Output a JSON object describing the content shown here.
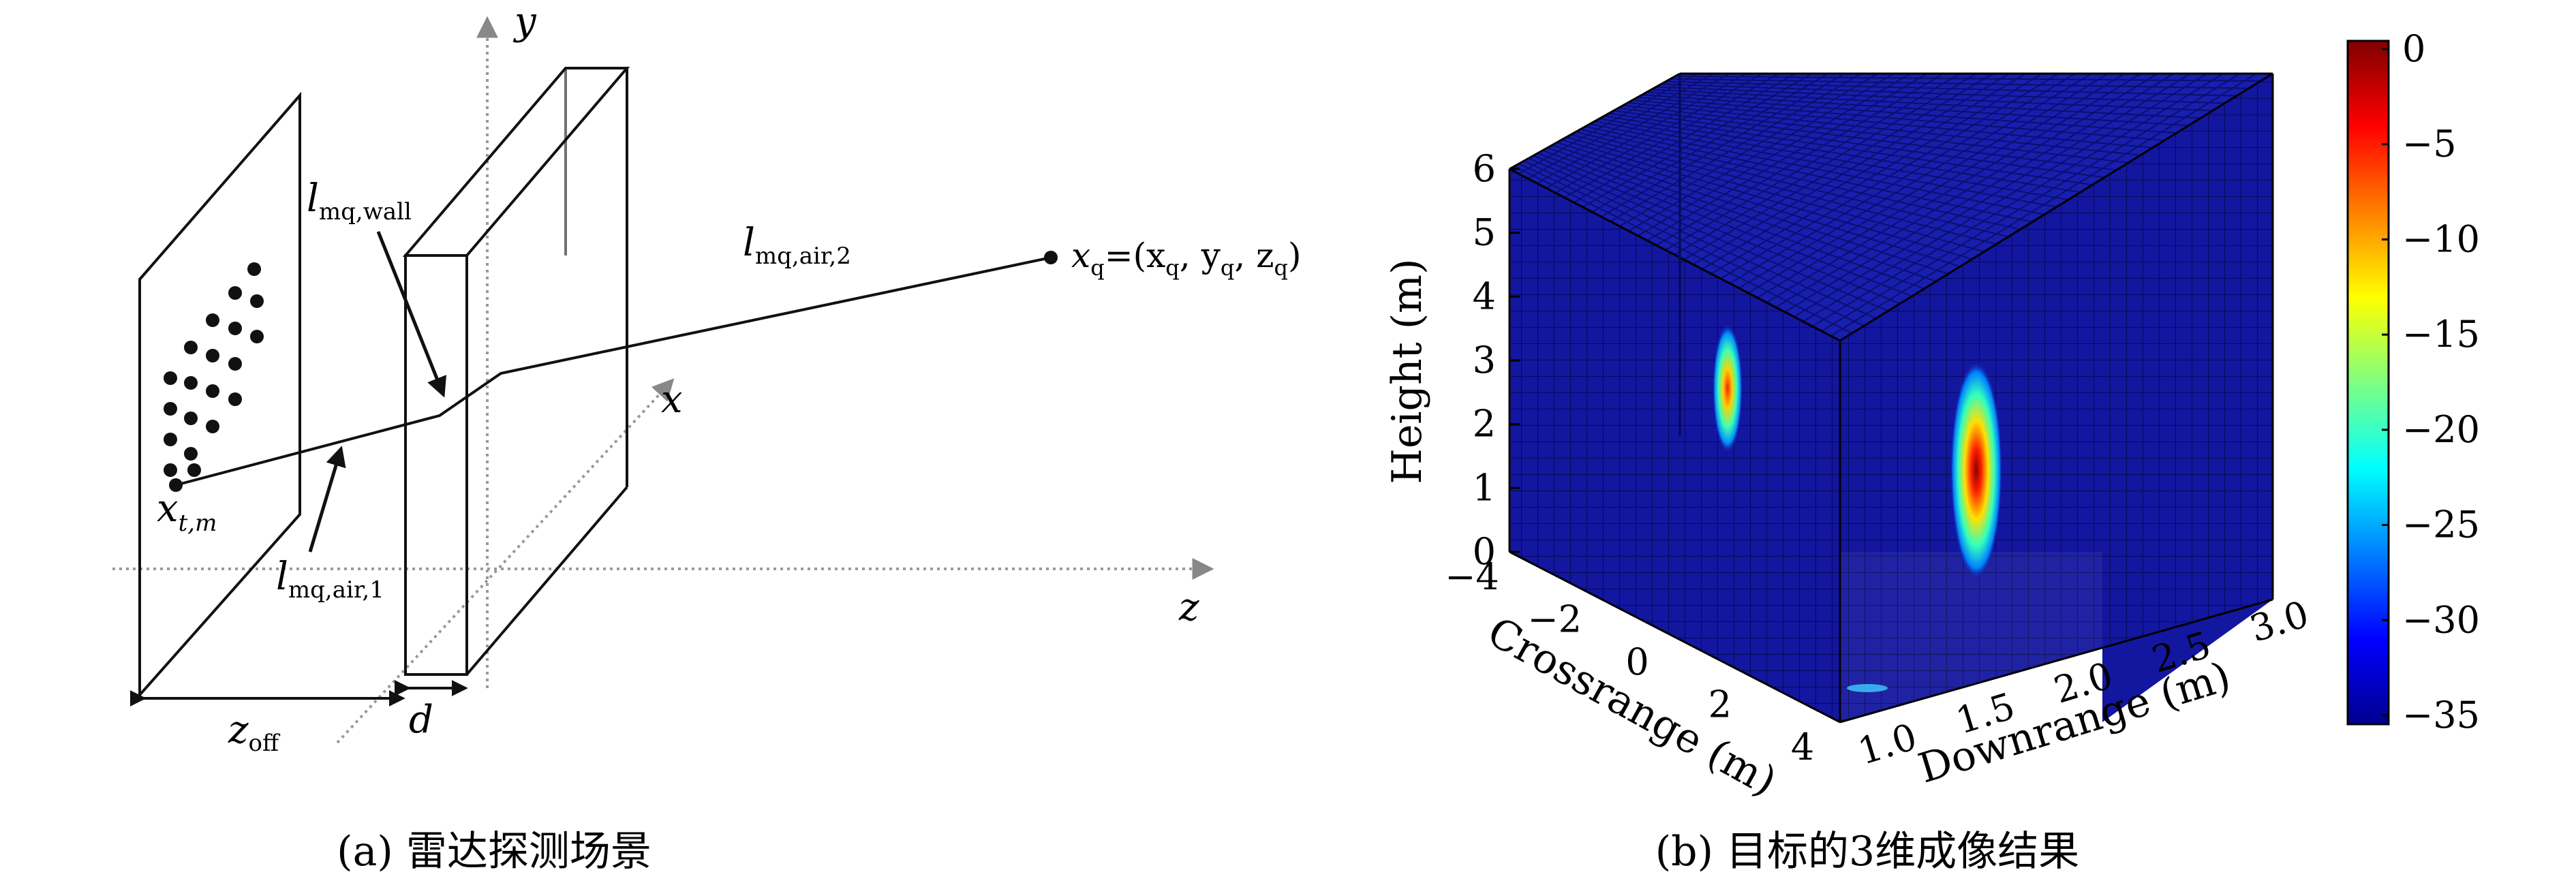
{
  "panel_a": {
    "caption": "(a) 雷达探测场景",
    "axis_y": "y",
    "axis_x": "x",
    "axis_z": "z",
    "label_xtm_main": "x",
    "label_xtm_sub": "t,m",
    "label_lwall_main": "l",
    "label_lwall_sub": "mq,wall",
    "label_lair1_main": "l",
    "label_lair1_sub": "mq,air,1",
    "label_lair2_main": "l",
    "label_lair2_sub": "mq,air,2",
    "label_xq": "x",
    "label_xq_sub": "q",
    "label_xq_eq": "=(x",
    "label_xq_y": ", y",
    "label_xq_z": ", z",
    "label_xq_close": ")",
    "label_zoff_main": "z",
    "label_zoff_sub": "off",
    "label_d": "d"
  },
  "panel_b": {
    "caption": "(b) 目标的3维成像结果",
    "height_label": "Height (m)",
    "crossrange_label": "Crossrange (m)",
    "downrange_label": "Downrange (m)",
    "height_ticks": [
      "0",
      "1",
      "2",
      "3",
      "4",
      "5",
      "6"
    ],
    "crossrange_ticks": [
      "−4",
      "−2",
      "0",
      "2",
      "4"
    ],
    "downrange_ticks": [
      "1.0",
      "1.5",
      "2.0",
      "2.5",
      "3.0"
    ],
    "colorbar_ticks": [
      "0",
      "−5",
      "−10",
      "−15",
      "−20",
      "−25",
      "−30",
      "−35"
    ],
    "colorbar_range": [
      -35,
      0
    ],
    "colormap": "jet",
    "background_color": "#13169e"
  }
}
